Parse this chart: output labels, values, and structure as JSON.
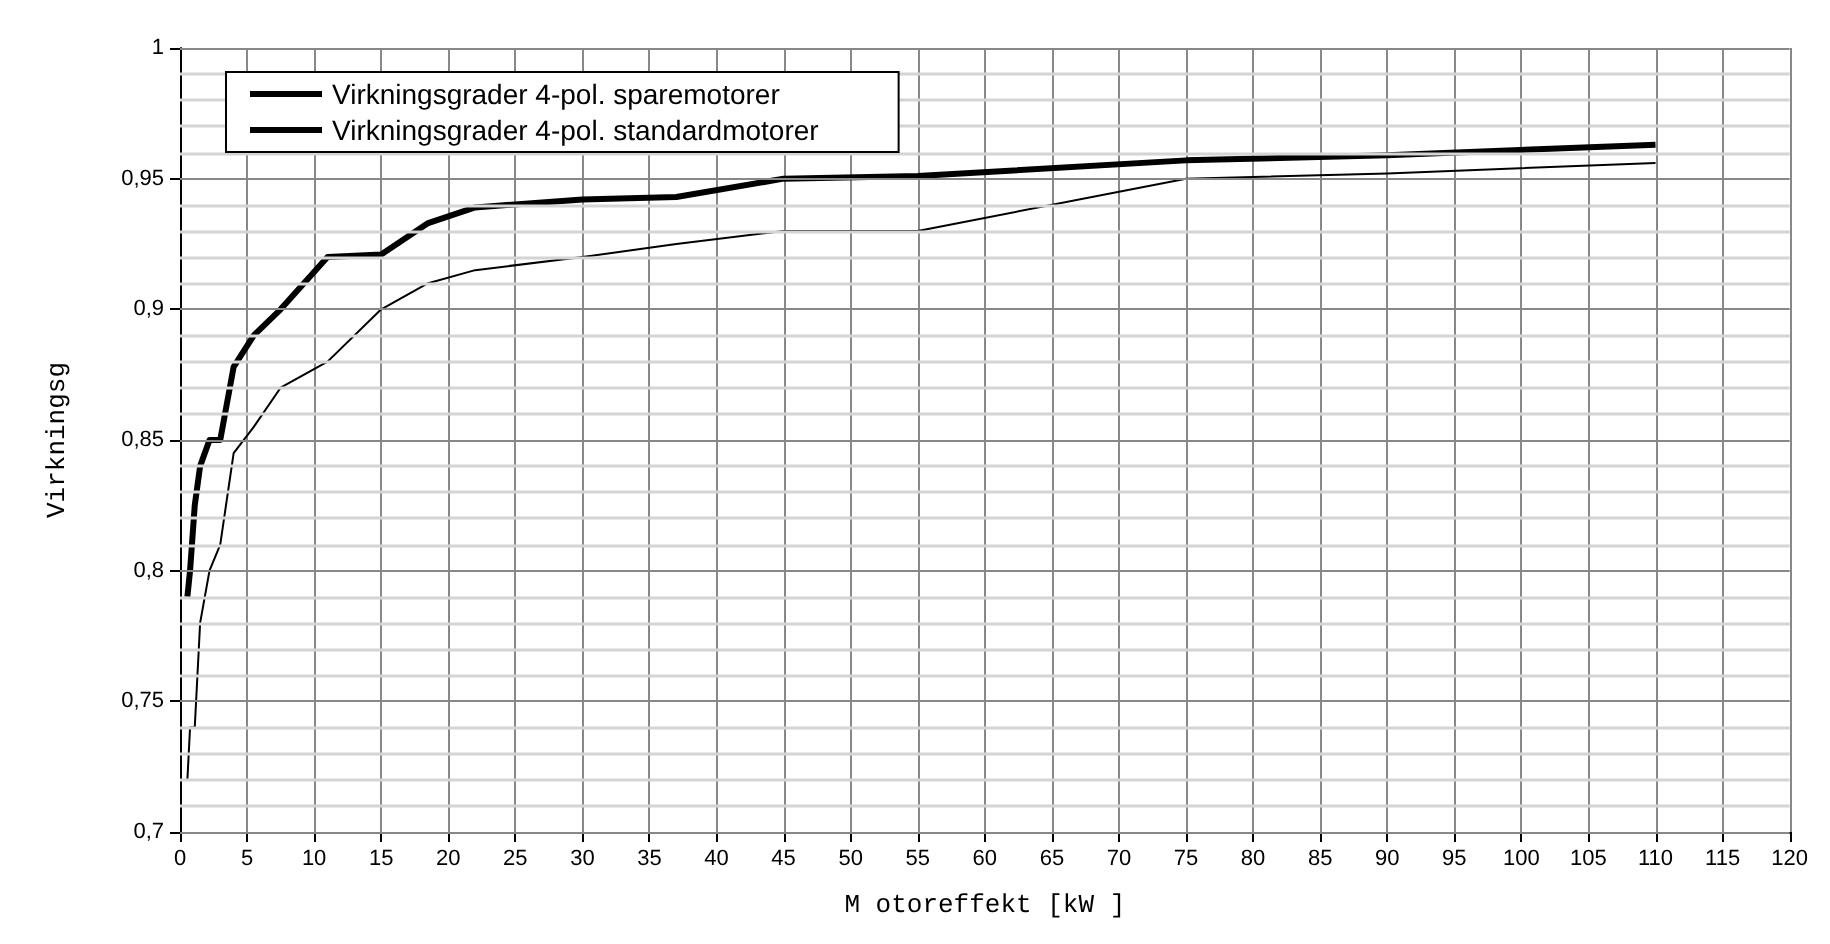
{
  "chart_data": {
    "type": "line",
    "xlabel": "M otoreffekt [kW ]",
    "ylabel": "Virkningsg",
    "x": [
      0.55,
      0.75,
      1.1,
      1.5,
      2.2,
      3,
      4,
      5.5,
      7.5,
      11,
      15,
      18.5,
      22,
      30,
      37,
      45,
      55,
      75,
      90,
      110
    ],
    "series": [
      {
        "name": "Virkningsgrader 4-pol. sparemotorer",
        "color": "#000000",
        "values": [
          0.79,
          0.8,
          0.825,
          0.84,
          0.85,
          0.85,
          0.878,
          0.89,
          0.9,
          0.92,
          0.921,
          0.933,
          0.939,
          0.942,
          0.943,
          0.95,
          0.951,
          0.957,
          0.959,
          0.963
        ]
      },
      {
        "name": "Virkningsgrader 4-pol. standardmotorer",
        "color": "#000000",
        "values": [
          0.72,
          0.74,
          0.74,
          0.78,
          0.8,
          0.81,
          0.845,
          0.855,
          0.87,
          0.88,
          0.9,
          0.91,
          0.915,
          0.92,
          0.925,
          0.93,
          0.93,
          0.95,
          0.952,
          0.956
        ]
      }
    ],
    "xlim": [
      0,
      120
    ],
    "xticks": [
      0,
      5,
      10,
      15,
      20,
      25,
      30,
      35,
      40,
      45,
      50,
      55,
      60,
      65,
      70,
      75,
      80,
      85,
      90,
      95,
      100,
      105,
      110,
      115,
      120
    ],
    "ylim": [
      0.7,
      1
    ],
    "yticks": [
      {
        "value": 0.7,
        "label": "0,7"
      },
      {
        "value": 0.71,
        "label": null
      },
      {
        "value": 0.72,
        "label": null
      },
      {
        "value": 0.73,
        "label": null
      },
      {
        "value": 0.74,
        "label": null
      },
      {
        "value": 0.75,
        "label": "0,75"
      },
      {
        "value": 0.76,
        "label": null
      },
      {
        "value": 0.77,
        "label": null
      },
      {
        "value": 0.78,
        "label": null
      },
      {
        "value": 0.79,
        "label": null
      },
      {
        "value": 0.8,
        "label": "0,8"
      },
      {
        "value": 0.81,
        "label": null
      },
      {
        "value": 0.82,
        "label": null
      },
      {
        "value": 0.83,
        "label": null
      },
      {
        "value": 0.84,
        "label": null
      },
      {
        "value": 0.85,
        "label": "0,85"
      },
      {
        "value": 0.86,
        "label": null
      },
      {
        "value": 0.87,
        "label": null
      },
      {
        "value": 0.88,
        "label": null
      },
      {
        "value": 0.89,
        "label": null
      },
      {
        "value": 0.9,
        "label": "0,9"
      },
      {
        "value": 0.91,
        "label": null
      },
      {
        "value": 0.92,
        "label": null
      },
      {
        "value": 0.93,
        "label": null
      },
      {
        "value": 0.94,
        "label": null
      },
      {
        "value": 0.95,
        "label": "0,95"
      },
      {
        "value": 0.96,
        "label": null
      },
      {
        "value": 0.97,
        "label": null
      },
      {
        "value": 0.98,
        "label": null
      },
      {
        "value": 0.99,
        "label": null
      },
      {
        "value": 1,
        "label": "1"
      }
    ],
    "grid": true,
    "legend": "top left",
    "marker": "none",
    "line_style": "solid"
  }
}
